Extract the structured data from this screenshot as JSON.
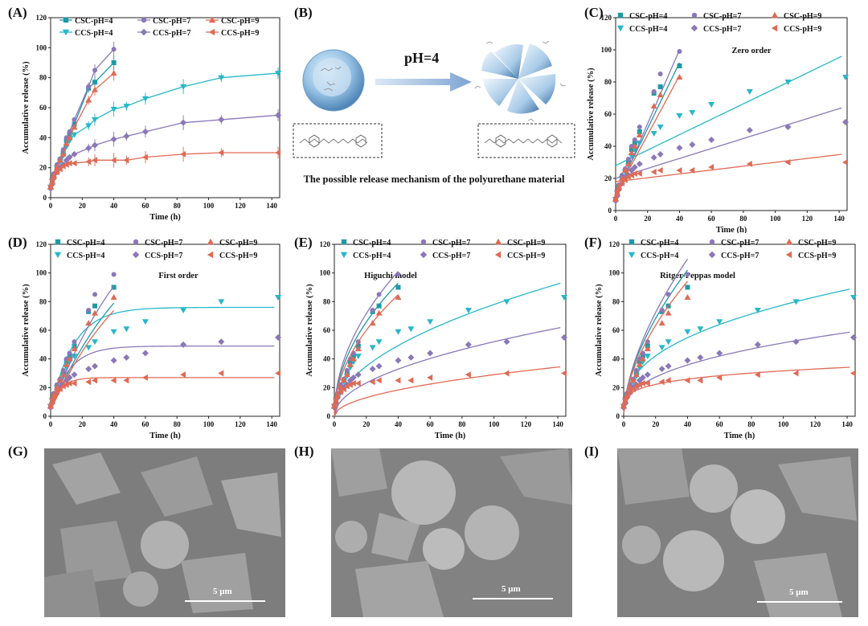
{
  "panels": {
    "A": {
      "label": "(A)"
    },
    "B": {
      "label": "(B)"
    },
    "C": {
      "label": "(C)"
    },
    "D": {
      "label": "(D)"
    },
    "E": {
      "label": "(E)"
    },
    "F": {
      "label": "(F)"
    },
    "G": {
      "label": "(G)"
    },
    "H": {
      "label": "(H)"
    },
    "I": {
      "label": "(I)"
    }
  },
  "mechanism": {
    "ph_label": "pH=4",
    "caption": "The possible release mechanism of the polyurethane material"
  },
  "sem": {
    "scale_label_G": "5 μm",
    "scale_label_H": "5 μm",
    "scale_label_I": "5 μm"
  },
  "colors": {
    "csc4": "#1e9aa5",
    "ccs4": "#25b8c9",
    "csc7": "#8a78b8",
    "ccs7": "#8a78b8",
    "csc9": "#e06a55",
    "ccs9": "#e06a55"
  },
  "chart_data": [
    {
      "id": "A",
      "type": "line",
      "title": "",
      "xlabel": "Time (h)",
      "ylabel": "Accumulative release (%)",
      "xlim": [
        0,
        145
      ],
      "ylim": [
        0,
        120
      ],
      "xticks": [
        0,
        20,
        40,
        60,
        80,
        100,
        120,
        140
      ],
      "yticks": [
        0,
        20,
        40,
        60,
        80,
        100,
        120
      ],
      "legend": [
        "CSC-pH=4",
        "CCS-pH=4",
        "CSC-pH=7",
        "CCS-pH=7",
        "CSC-pH=9",
        "CCS-pH=9"
      ],
      "series": [
        {
          "name": "CSC-pH=4",
          "marker": "square",
          "color": "#1e9aa5",
          "x": [
            0,
            1,
            2,
            4,
            6,
            8,
            10,
            12,
            15,
            24,
            28,
            40
          ],
          "y": [
            7,
            12,
            15,
            20,
            25,
            30,
            38,
            42,
            49,
            73,
            77,
            90
          ]
        },
        {
          "name": "CCS-pH=4",
          "marker": "tri-down",
          "color": "#25b8c9",
          "x": [
            0,
            1,
            2,
            4,
            6,
            8,
            10,
            12,
            15,
            24,
            28,
            40,
            48,
            60,
            84,
            108,
            144
          ],
          "y": [
            7,
            11,
            14,
            20,
            24,
            28,
            34,
            38,
            42,
            48,
            52,
            59,
            61,
            66,
            74,
            80,
            83
          ]
        },
        {
          "name": "CSC-pH=7",
          "marker": "circle",
          "color": "#8a78b8",
          "x": [
            0,
            1,
            2,
            4,
            6,
            8,
            10,
            12,
            15,
            24,
            28,
            40
          ],
          "y": [
            7,
            12,
            16,
            22,
            26,
            32,
            40,
            44,
            52,
            74,
            85,
            99
          ]
        },
        {
          "name": "CCS-pH=7",
          "marker": "diamond",
          "color": "#8a78b8",
          "x": [
            0,
            1,
            2,
            4,
            6,
            8,
            10,
            12,
            15,
            24,
            28,
            40,
            48,
            60,
            84,
            108,
            144
          ],
          "y": [
            6,
            9,
            13,
            17,
            20,
            22,
            25,
            27,
            29,
            33,
            35,
            39,
            41,
            44,
            50,
            52,
            55
          ]
        },
        {
          "name": "CSC-pH=9",
          "marker": "triangle",
          "color": "#e06a55",
          "x": [
            0,
            1,
            2,
            4,
            6,
            8,
            10,
            12,
            15,
            24,
            28,
            40
          ],
          "y": [
            7,
            11,
            15,
            20,
            25,
            29,
            36,
            40,
            47,
            65,
            72,
            83
          ]
        },
        {
          "name": "CCS-pH=9",
          "marker": "tri-left",
          "color": "#e06a55",
          "x": [
            0,
            1,
            2,
            4,
            6,
            8,
            10,
            12,
            15,
            24,
            28,
            40,
            48,
            60,
            84,
            108,
            144
          ],
          "y": [
            8,
            12,
            14,
            17,
            19,
            21,
            22,
            23,
            23,
            24,
            25,
            25,
            25,
            27,
            29,
            30,
            30
          ]
        }
      ]
    },
    {
      "id": "C",
      "type": "scatter",
      "title": "Zero order",
      "xlabel": "Time (h)",
      "ylabel": "Accumulative release (%)",
      "xlim": [
        0,
        145
      ],
      "ylim": [
        0,
        120
      ],
      "xticks": [
        0,
        20,
        40,
        60,
        80,
        100,
        120,
        140
      ],
      "yticks": [
        0,
        20,
        40,
        60,
        80,
        100,
        120
      ],
      "legend": [
        "CSC-pH=4",
        "CSC-pH=7",
        "CSC-pH=9",
        "CCS-pH=4",
        "CCS-pH=7",
        "CCS-pH=9"
      ],
      "model": "zero"
    },
    {
      "id": "D",
      "type": "scatter",
      "title": "First order",
      "xlabel": "Time (h)",
      "ylabel": "Accumulative release (%)",
      "xlim": [
        0,
        145
      ],
      "ylim": [
        0,
        120
      ],
      "xticks": [
        0,
        20,
        40,
        60,
        80,
        100,
        120,
        140
      ],
      "yticks": [
        0,
        20,
        40,
        60,
        80,
        100,
        120
      ],
      "legend": [
        "CSC-pH=4",
        "CSC-pH=7",
        "CSC-pH=9",
        "CCS-pH=4",
        "CCS-pH=7",
        "CCS-pH=9"
      ],
      "model": "first"
    },
    {
      "id": "E",
      "type": "scatter",
      "title": "Higuchi model",
      "xlabel": "Time (h)",
      "ylabel": "Accumulative release (%)",
      "xlim": [
        0,
        145
      ],
      "ylim": [
        0,
        120
      ],
      "xticks": [
        0,
        20,
        40,
        60,
        80,
        100,
        120,
        140
      ],
      "yticks": [
        0,
        20,
        40,
        60,
        80,
        100,
        120
      ],
      "legend": [
        "CSC-pH=4",
        "CSC-pH=7",
        "CSC-pH=9",
        "CCS-pH=4",
        "CCS-pH=7",
        "CCS-pH=9"
      ],
      "model": "higuchi"
    },
    {
      "id": "F",
      "type": "scatter",
      "title": "Ritger-Peppas model",
      "xlabel": "Time (h)",
      "ylabel": "Accumulative release (%)",
      "xlim": [
        0,
        145
      ],
      "ylim": [
        0,
        120
      ],
      "xticks": [
        0,
        20,
        40,
        60,
        80,
        100,
        120,
        140
      ],
      "yticks": [
        0,
        20,
        40,
        60,
        80,
        100,
        120
      ],
      "legend": [
        "CSC-pH=4",
        "CSC-pH=7",
        "CSC-pH=9",
        "CCS-pH=4",
        "CCS-pH=7",
        "CCS-pH=9"
      ],
      "model": "peppas"
    }
  ]
}
